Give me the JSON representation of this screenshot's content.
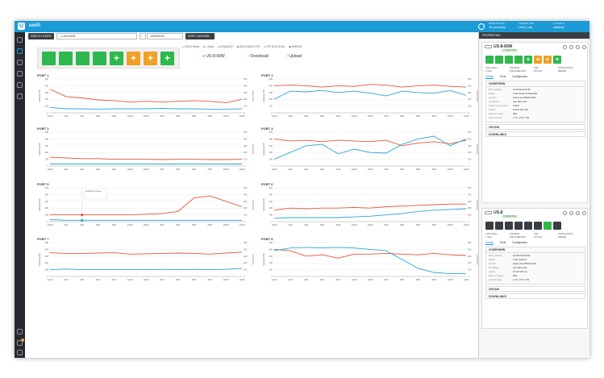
{
  "app": {
    "title": "unifi"
  },
  "topbar": {
    "refresh": {
      "label": "REFRESH RATE",
      "value": "15 seconds"
    },
    "site": {
      "label": "CURRENT SITE",
      "value": "Unifi_Lab"
    },
    "user": {
      "label": "LOGGED IN",
      "value": "cladmin"
    }
  },
  "toolbar": {
    "switch_stats": "SWITCH STATS",
    "device": "US-8-60W",
    "date": "10/26/2016",
    "sort": "SORT: NATURAL"
  },
  "legend": [
    {
      "label": "100/10 Mbps",
      "color": "#f0a025"
    },
    {
      "label": "1 Gbps",
      "color": "#2eb84d"
    },
    {
      "label": "DISABLED",
      "color": "#999999"
    },
    {
      "label": "DISCONNECTED",
      "color": "#3a3d42"
    },
    {
      "label": "STP BLOCKING",
      "color": "#f0a025"
    },
    {
      "label": "MIRROR",
      "color": "#333333"
    }
  ],
  "device_legend": {
    "device": "US-8-60W",
    "download": "Download",
    "upload": "Upload"
  },
  "colors": {
    "download": "#e8553a",
    "upload": "#2aa8d8",
    "accent": "#1b9ad6",
    "green": "#2eb84d",
    "orange": "#f0a025"
  },
  "ports_main": [
    {
      "symbol": "",
      "color": "#2eb84d"
    },
    {
      "symbol": "",
      "color": "#2eb84d"
    },
    {
      "symbol": "",
      "color": "#2eb84d"
    },
    {
      "symbol": "",
      "color": "#2eb84d"
    },
    {
      "symbol": "+",
      "color": "#2eb84d"
    },
    {
      "symbol": "+",
      "color": "#f0a025"
    },
    {
      "symbol": "+",
      "color": "#f0a025"
    },
    {
      "symbol": "+",
      "color": "#2eb84d"
    }
  ],
  "x_ticks": [
    "12AM",
    "2AM",
    "4AM",
    "6AM",
    "8AM",
    "10AM",
    "12PM",
    "2PM",
    "4PM",
    "6PM",
    "8PM",
    "10PM",
    "12AM"
  ],
  "y_ticks": [
    "0",
    "100",
    "200",
    "300",
    "400",
    "500"
  ],
  "y_left_label": "Download (KB)",
  "y_right_label": "Upload (KB)",
  "tooltip": {
    "title": "10/26/2016 4:00 am"
  },
  "chart_data": [
    {
      "type": "line",
      "title": "PORT 1",
      "ylim": [
        0,
        500
      ],
      "series": [
        {
          "name": "Download",
          "values": [
            350,
            240,
            220,
            190,
            180,
            160,
            170,
            160,
            170,
            180,
            170,
            150,
            200
          ]
        },
        {
          "name": "Upload",
          "values": [
            80,
            60,
            60,
            55,
            60,
            60,
            60,
            65,
            60,
            60,
            55,
            55,
            60
          ]
        }
      ]
    },
    {
      "type": "line",
      "title": "PORT 2",
      "ylim": [
        0,
        500
      ],
      "series": [
        {
          "name": "Download",
          "values": [
            400,
            410,
            400,
            380,
            400,
            390,
            420,
            410,
            380,
            400,
            410,
            390,
            380
          ]
        },
        {
          "name": "Upload",
          "values": [
            200,
            320,
            310,
            330,
            300,
            320,
            290,
            250,
            320,
            300,
            290,
            330,
            260
          ]
        }
      ]
    },
    {
      "type": "line",
      "title": "PORT 3",
      "ylim": [
        0,
        500
      ],
      "series": [
        {
          "name": "Download",
          "values": [
            130,
            120,
            110,
            110,
            100,
            100,
            100,
            95,
            100,
            100,
            95,
            95,
            100
          ]
        },
        {
          "name": "Upload",
          "values": [
            30,
            30,
            30,
            30,
            30,
            30,
            30,
            30,
            30,
            30,
            30,
            30,
            30
          ]
        }
      ]
    },
    {
      "type": "line",
      "title": "PORT 4",
      "ylim": [
        0,
        500
      ],
      "series": [
        {
          "name": "Download",
          "values": [
            400,
            370,
            380,
            360,
            380,
            370,
            360,
            380,
            300,
            340,
            360,
            330,
            380
          ]
        },
        {
          "name": "Upload",
          "values": [
            100,
            200,
            300,
            320,
            180,
            250,
            200,
            190,
            320,
            400,
            440,
            300,
            400
          ]
        }
      ]
    },
    {
      "type": "line",
      "title": "PORT 5",
      "ylim": [
        0,
        500
      ],
      "series": [
        {
          "name": "Download",
          "values": [
            100,
            100,
            100,
            100,
            100,
            100,
            110,
            120,
            150,
            350,
            380,
            300,
            220
          ]
        },
        {
          "name": "Upload",
          "values": [
            30,
            20,
            20,
            20,
            20,
            20,
            20,
            20,
            20,
            20,
            20,
            20,
            20
          ]
        }
      ]
    },
    {
      "type": "line",
      "title": "PORT 6",
      "ylim": [
        0,
        500
      ],
      "series": [
        {
          "name": "Download",
          "values": [
            170,
            200,
            190,
            200,
            200,
            210,
            200,
            220,
            230,
            240,
            250,
            260,
            260
          ]
        },
        {
          "name": "Upload",
          "values": [
            50,
            60,
            60,
            60,
            60,
            70,
            80,
            100,
            120,
            150,
            170,
            180,
            190
          ]
        }
      ]
    },
    {
      "type": "line",
      "title": "PORT 7",
      "ylim": [
        0,
        500
      ],
      "series": [
        {
          "name": "Download",
          "values": [
            350,
            340,
            340,
            345,
            350,
            330,
            335,
            340,
            345,
            340,
            330,
            345,
            360
          ]
        },
        {
          "name": "Upload",
          "values": [
            100,
            110,
            100,
            100,
            100,
            100,
            100,
            105,
            100,
            105,
            100,
            105,
            120
          ]
        }
      ]
    },
    {
      "type": "line",
      "title": "PORT 8",
      "ylim": [
        0,
        500
      ],
      "series": [
        {
          "name": "Download",
          "values": [
            400,
            380,
            300,
            320,
            270,
            330,
            330,
            340,
            330,
            320,
            340,
            320,
            310
          ]
        },
        {
          "name": "Upload",
          "values": [
            380,
            420,
            430,
            420,
            430,
            420,
            400,
            380,
            250,
            120,
            60,
            40,
            40
          ]
        }
      ]
    }
  ],
  "props": {
    "header": "PROPERTIES",
    "devices": [
      {
        "name": "US-8-60W",
        "badge": "CONNECTED",
        "ports": [
          {
            "symbol": "",
            "color": "#2eb84d"
          },
          {
            "symbol": "",
            "color": "#2eb84d"
          },
          {
            "symbol": "",
            "color": "#2eb84d"
          },
          {
            "symbol": "",
            "color": "#2eb84d"
          },
          {
            "symbol": "+",
            "color": "#2eb84d"
          },
          {
            "symbol": "+",
            "color": "#f0a025"
          },
          {
            "symbol": "+",
            "color": "#f0a025"
          },
          {
            "symbol": "+",
            "color": "#2eb84d"
          }
        ],
        "legend": [
          "100/10 Mbps",
          "DISABLED",
          "PoE+",
          "STP BLOCKING",
          "1 Gbps",
          "DISCONNECTED",
          "24V PoE",
          "MIRROR"
        ],
        "tabs": [
          "Details",
          "Ports",
          "Configuration"
        ],
        "overview_title": "OVERVIEW",
        "fields": [
          {
            "k": "MAC Address",
            "v": "04:18:d6:a0:9c:86"
          },
          {
            "k": "Model",
            "v": "UniFi Switch 8 POE-60W"
          },
          {
            "k": "Version",
            "v": "feature.bmx55062.5195"
          },
          {
            "k": "IP Address",
            "v": "192.168.1.204"
          },
          {
            "k": "Power Consumption",
            "v": "6.93W"
          },
          {
            "k": "Uptime",
            "v": "2d 22h 25m 30s"
          },
          {
            "k": "Memory Usage",
            "v": "38%"
          },
          {
            "k": "Load Average",
            "v": "1.70 / 1.52 / 1.50"
          }
        ],
        "uplink": "UPLINK",
        "downlinks": "DOWNLINKS"
      },
      {
        "name": "US-8",
        "badge": "CONNECTED",
        "ports": [
          {
            "symbol": "",
            "color": "#3a3d42"
          },
          {
            "symbol": "",
            "color": "#3a3d42"
          },
          {
            "symbol": "",
            "color": "#3a3d42"
          },
          {
            "symbol": "",
            "color": "#3a3d42"
          },
          {
            "symbol": "",
            "color": "#3a3d42"
          },
          {
            "symbol": "",
            "color": "#3a3d42"
          },
          {
            "symbol": "",
            "color": "#2eb84d"
          },
          {
            "symbol": "",
            "color": "#3a3d42"
          }
        ],
        "legend": [
          "100/10 Mbps",
          "DISABLED",
          "PoE+",
          "STP BLOCKING",
          "1 Gbps",
          "DISCONNECTED",
          "24V PoE",
          "MIRROR"
        ],
        "tabs": [
          "Details",
          "Ports",
          "Configuration"
        ],
        "overview_title": "OVERVIEW",
        "fields": [
          {
            "k": "MAC Address",
            "v": "04:18:d6:a0:53:9e"
          },
          {
            "k": "Model",
            "v": "UniFi Switch 8"
          },
          {
            "k": "Version",
            "v": "feature.bmx55062.5195"
          },
          {
            "k": "IP Address",
            "v": "192.168.1.203"
          },
          {
            "k": "Uptime",
            "v": "2d 22h 25m 2s"
          },
          {
            "k": "Memory Usage",
            "v": "38%"
          },
          {
            "k": "Load Average",
            "v": "1.23 / 1.52 / 1.59"
          }
        ],
        "uplink": "UPLINK",
        "downlinks": "DOWNLINKS"
      }
    ]
  }
}
